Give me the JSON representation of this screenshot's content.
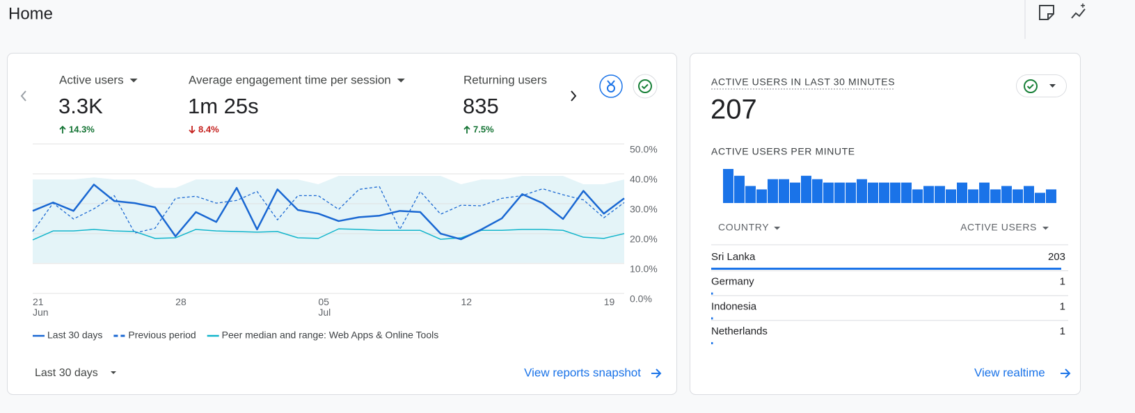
{
  "header": {
    "title": "Home"
  },
  "overview": {
    "metrics": [
      {
        "label": "Active users",
        "value": "3.3K",
        "change": "14.3%",
        "trend": "up",
        "color": "#137333"
      },
      {
        "label": "Average engagement time per session",
        "value": "1m 25s",
        "change": "8.4%",
        "trend": "down",
        "color": "#c5221f"
      },
      {
        "label": "Returning users",
        "value": "835",
        "change": "7.5%",
        "trend": "up",
        "color": "#137333"
      }
    ],
    "chart_data": {
      "type": "line",
      "categories": [
        "21 Jun",
        null,
        null,
        null,
        null,
        null,
        null,
        "28",
        null,
        null,
        null,
        null,
        null,
        null,
        "05 Jul",
        null,
        null,
        null,
        null,
        null,
        null,
        "12",
        null,
        null,
        null,
        null,
        null,
        null,
        "19",
        null
      ],
      "ylim": [
        0,
        50
      ],
      "yticks": [
        {
          "value": 0,
          "label": "0.0%"
        },
        {
          "value": 10,
          "label": "10.0%"
        },
        {
          "value": 20,
          "label": "20.0%"
        },
        {
          "value": 30,
          "label": "30.0%"
        },
        {
          "value": 40,
          "label": "40.0%"
        },
        {
          "value": 50,
          "label": "50.0%"
        }
      ],
      "grid": true,
      "series": [
        {
          "name": "Last 30 days",
          "color": "#1967d2",
          "style": "solid",
          "values": [
            27.6,
            30.4,
            27.6,
            36.4,
            30.9,
            30.2,
            28.8,
            19.1,
            27.2,
            23.9,
            35.3,
            21.4,
            34.8,
            27.9,
            26.7,
            24.2,
            25.5,
            26.0,
            27.6,
            27.2,
            20.0,
            18.1,
            21.4,
            25.1,
            33.2,
            30.2,
            24.9,
            34.3,
            26.7,
            31.8
          ]
        },
        {
          "name": "Previous period",
          "color": "#1967d2",
          "style": "dashed",
          "values": [
            20.7,
            30.2,
            24.9,
            28.3,
            32.7,
            20.2,
            21.8,
            31.8,
            32.5,
            30.2,
            31.1,
            34.1,
            24.6,
            32.7,
            32.7,
            28.1,
            34.8,
            35.7,
            21.4,
            34.1,
            26.5,
            29.5,
            29.3,
            31.8,
            32.7,
            35.0,
            33.0,
            31.3,
            25.3,
            30.4
          ]
        },
        {
          "name": "Peer median and range: Web Apps & Online Tools",
          "color": "#12b5cb",
          "style": "solid",
          "range_color": "#e4f4f8",
          "values": [
            17.9,
            20.9,
            20.9,
            21.4,
            20.9,
            20.7,
            18.4,
            18.6,
            21.4,
            20.9,
            20.7,
            20.5,
            20.7,
            18.6,
            18.4,
            21.6,
            21.4,
            21.1,
            21.1,
            21.1,
            18.1,
            18.6,
            21.1,
            21.1,
            21.4,
            21.4,
            21.1,
            18.8,
            18.4,
            20.0
          ],
          "range_high": [
            38.1,
            38.1,
            38.1,
            38.8,
            38.1,
            38.1,
            35.3,
            35.3,
            38.1,
            38.1,
            38.1,
            38.1,
            38.1,
            38.1,
            36.5,
            39.3,
            39.3,
            39.3,
            39.3,
            39.3,
            39.3,
            36.5,
            38.1,
            38.1,
            39.3,
            39.3,
            39.3,
            36.5,
            36.5,
            38.1
          ],
          "range_low": [
            10.2,
            10.2,
            10.2,
            10.2,
            10.2,
            10.2,
            10.2,
            10.2,
            10.2,
            10.2,
            10.2,
            10.2,
            10.2,
            10.2,
            10.2,
            10.2,
            10.2,
            10.2,
            10.2,
            10.2,
            10.2,
            10.2,
            10.2,
            10.2,
            10.2,
            10.2,
            10.2,
            10.2,
            10.2,
            10.2
          ]
        }
      ]
    },
    "period": "Last 30 days",
    "link": "View reports snapshot"
  },
  "realtime": {
    "title": "ACTIVE USERS IN LAST 30 MINUTES",
    "value": "207",
    "per_minute": {
      "title": "ACTIVE USERS PER MINUTE",
      "chart_data": {
        "type": "bar",
        "color": "#1a73e8",
        "ylim": [
          0,
          10
        ],
        "values": [
          10,
          8,
          5,
          4,
          7,
          7,
          6,
          8,
          7,
          6,
          6,
          6,
          7,
          6,
          6,
          6,
          6,
          4,
          5,
          5,
          4,
          6,
          4,
          6,
          4,
          5,
          4,
          5,
          3,
          4
        ]
      }
    },
    "table": {
      "columns": [
        "COUNTRY",
        "ACTIVE USERS"
      ],
      "bar_color": "#1a73e8",
      "rows": [
        [
          "Sri Lanka",
          203
        ],
        [
          "Germany",
          1
        ],
        [
          "Indonesia",
          1
        ],
        [
          "Netherlands",
          1
        ]
      ]
    },
    "link": "View realtime"
  }
}
